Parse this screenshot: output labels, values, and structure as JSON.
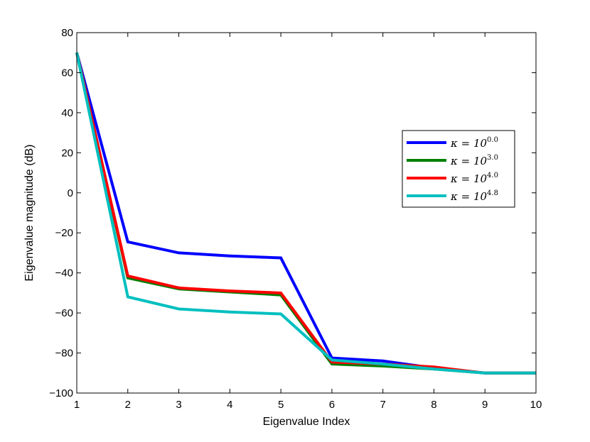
{
  "chart_data": {
    "type": "line",
    "title": "",
    "xlabel": "Eigenvalue Index",
    "ylabel": "Eigenvalue magnitude (dB)",
    "xlim": [
      1,
      10
    ],
    "ylim": [
      -100,
      80
    ],
    "xticks": [
      1,
      2,
      3,
      4,
      5,
      6,
      7,
      8,
      9,
      10
    ],
    "yticks": [
      -100,
      -80,
      -60,
      -40,
      -20,
      0,
      20,
      40,
      60,
      80
    ],
    "ytick_labels": [
      "−100",
      "−80",
      "−60",
      "−40",
      "−20",
      "0",
      "20",
      "40",
      "60",
      "80"
    ],
    "grid": false,
    "legend_position": "center-right",
    "x": [
      1,
      2,
      3,
      4,
      5,
      6,
      7,
      8,
      9,
      10
    ],
    "series": [
      {
        "name": "κ = 10^0.0",
        "legend_prefix": "κ = 10",
        "legend_exp": "0.0",
        "color": "#0000ff",
        "values": [
          70,
          -24.5,
          -30,
          -31.5,
          -32.5,
          -82.5,
          -84,
          -87.5,
          -90,
          -90
        ]
      },
      {
        "name": "κ = 10^3.0",
        "legend_prefix": "κ = 10",
        "legend_exp": "3.0",
        "color": "#007f00",
        "values": [
          70,
          -42.5,
          -48,
          -49.5,
          -51,
          -85.5,
          -86.5,
          -88,
          -90,
          -90
        ]
      },
      {
        "name": "κ = 10^4.0",
        "legend_prefix": "κ = 10",
        "legend_exp": "4.0",
        "color": "#ff0000",
        "values": [
          70,
          -41.5,
          -47.5,
          -49,
          -50,
          -84.5,
          -85.5,
          -87,
          -90,
          -90
        ]
      },
      {
        "name": "κ = 10^4.8",
        "legend_prefix": "κ = 10",
        "legend_exp": "4.8",
        "color": "#00bfbf",
        "values": [
          70,
          -52,
          -58,
          -59.5,
          -60.5,
          -83.5,
          -85.5,
          -88,
          -90,
          -90
        ]
      }
    ]
  }
}
